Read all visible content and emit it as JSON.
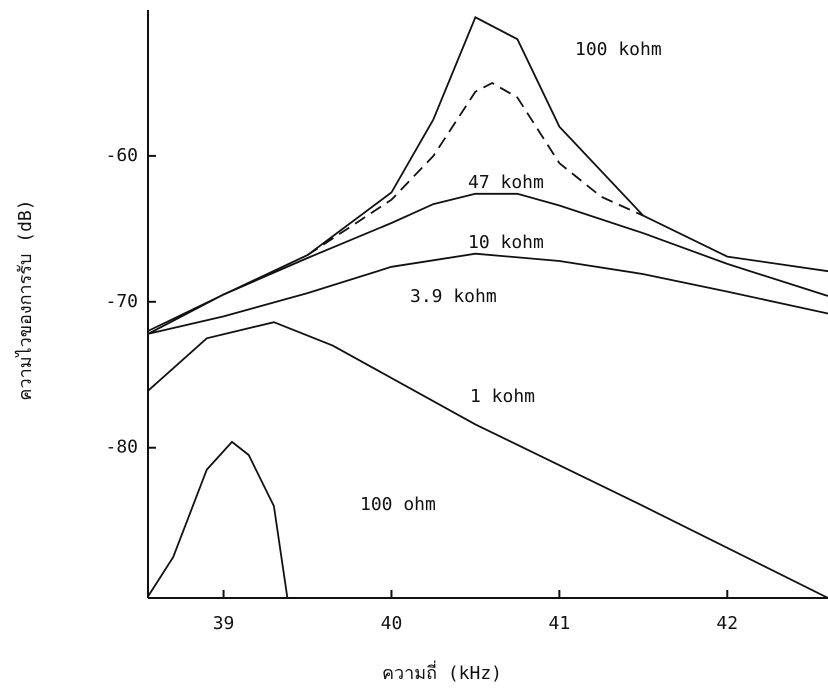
{
  "chart_data": {
    "type": "line",
    "x_label": "ความถี่ (kHz)",
    "y_label": "ความไวของการรับ (dB)",
    "xlim": [
      38.55,
      42.6
    ],
    "ylim": [
      -90.3,
      -50
    ],
    "xticks": [
      39,
      40,
      41,
      42
    ],
    "yticks": [
      -60,
      -70,
      -80
    ],
    "series": [
      {
        "name": "100 kohm",
        "color": "#111111",
        "dashed": false,
        "x": [
          38.55,
          39.0,
          39.5,
          40.0,
          40.25,
          40.5,
          40.75,
          41.0,
          41.5,
          42.0,
          42.6
        ],
        "values": [
          -72.0,
          -69.5,
          -66.8,
          -62.5,
          -57.5,
          -50.5,
          -52.0,
          -58.0,
          -64.1,
          -66.9,
          -67.9
        ]
      },
      {
        "name": "47 kohm",
        "color": "#111111",
        "dashed": true,
        "x": [
          39.5,
          40.0,
          40.25,
          40.5,
          40.6,
          40.75,
          41.0,
          41.25,
          41.5
        ],
        "values": [
          -66.8,
          -63.0,
          -60.0,
          -55.6,
          -55.0,
          -56.0,
          -60.5,
          -62.8,
          -64.1
        ]
      },
      {
        "name": "10 kohm",
        "color": "#111111",
        "dashed": false,
        "x": [
          38.55,
          39.0,
          39.5,
          40.0,
          40.25,
          40.5,
          40.75,
          41.0,
          41.5,
          42.0,
          42.6
        ],
        "values": [
          -72.2,
          -69.5,
          -67.0,
          -64.6,
          -63.3,
          -62.6,
          -62.6,
          -63.4,
          -65.3,
          -67.4,
          -69.6
        ]
      },
      {
        "name": "3.9 kohm",
        "color": "#111111",
        "dashed": false,
        "x": [
          38.55,
          39.0,
          39.5,
          40.0,
          40.5,
          41.0,
          41.5,
          42.0,
          42.6
        ],
        "values": [
          -72.2,
          -71.0,
          -69.4,
          -67.6,
          -66.7,
          -67.2,
          -68.1,
          -69.3,
          -70.8
        ]
      },
      {
        "name": "1 kohm",
        "color": "#111111",
        "dashed": false,
        "x": [
          38.55,
          38.9,
          39.3,
          39.65,
          40.5,
          41.5,
          42.6
        ],
        "values": [
          -76.1,
          -72.5,
          -71.4,
          -73.0,
          -78.4,
          -84.0,
          -90.3
        ]
      },
      {
        "name": "100 ohm",
        "color": "#111111",
        "dashed": false,
        "x": [
          38.55,
          38.7,
          38.9,
          39.05,
          39.15,
          39.3,
          39.38
        ],
        "values": [
          -90.2,
          -87.5,
          -81.5,
          -79.6,
          -80.5,
          -84.0,
          -90.3
        ]
      }
    ]
  }
}
